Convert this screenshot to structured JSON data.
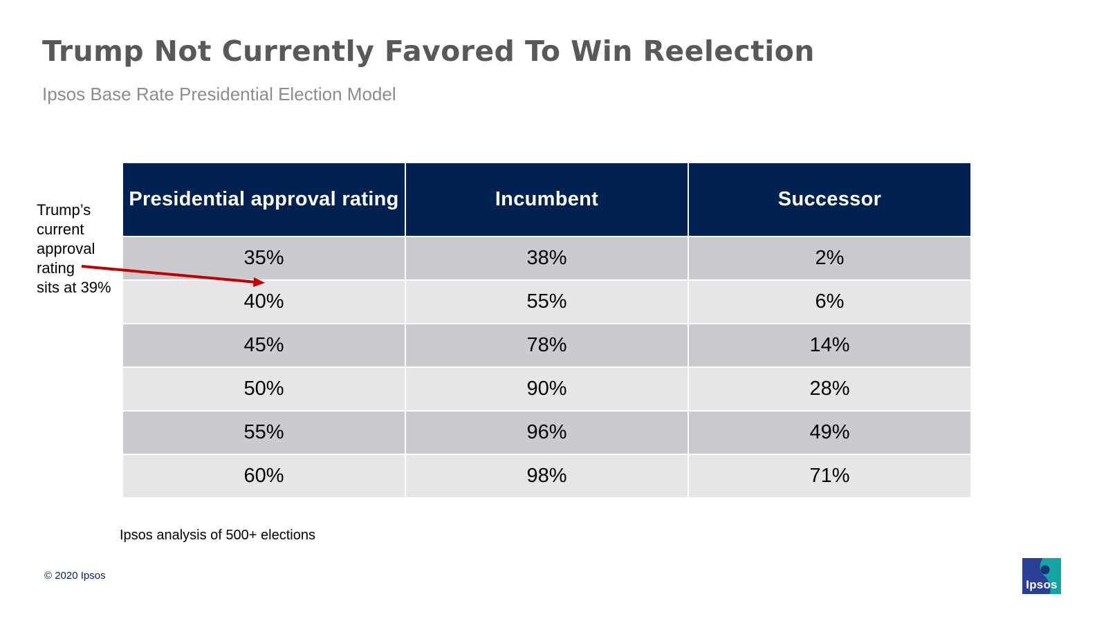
{
  "slide": {
    "title": "Trump Not Currently Favored To Win Reelection",
    "subtitle": "Ipsos Base Rate Presidential Election Model",
    "annotation": [
      "Trump’s",
      "current",
      "approval",
      "rating",
      "sits at 39%"
    ],
    "source": "Ipsos analysis of 500+ elections",
    "copyright": "© 2020 Ipsos",
    "logo_text": "Ipsos"
  },
  "table": {
    "headers": [
      "Presidential approval rating",
      "Incumbent",
      "Successor"
    ],
    "rows": [
      [
        "35%",
        "38%",
        "2%"
      ],
      [
        "40%",
        "55%",
        "6%"
      ],
      [
        "45%",
        "78%",
        "14%"
      ],
      [
        "50%",
        "90%",
        "28%"
      ],
      [
        "55%",
        "96%",
        "49%"
      ],
      [
        "60%",
        "98%",
        "71%"
      ]
    ]
  },
  "colors": {
    "header_bg": "#002252",
    "row_dark": "#cbcbcf",
    "row_light": "#e6e6e8",
    "title": "#595959",
    "subtitle": "#8c8c8c",
    "arrow": "#c00000",
    "logo_blue": "#2a3d97",
    "logo_teal": "#14a5a0"
  },
  "icons": {
    "arrow": "red-pointer-arrow-icon",
    "logo": "ipsos-logo-icon"
  }
}
